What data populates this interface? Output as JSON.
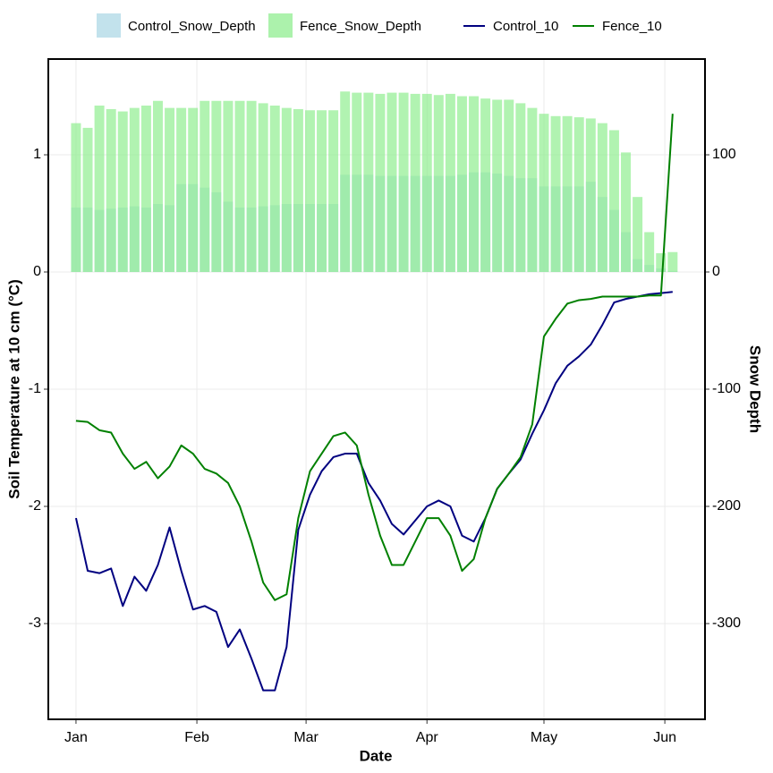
{
  "chart_data": {
    "type": "combo",
    "x_label": "Date",
    "y_label": "Soil Temperature at 10 cm (°C)",
    "y2_label": "Snow Depth",
    "x": [
      0,
      3,
      6,
      9,
      12,
      15,
      18,
      21,
      24,
      27,
      30,
      33,
      36,
      39,
      42,
      45,
      48,
      51,
      54,
      57,
      60,
      63,
      66,
      69,
      72,
      75,
      78,
      81,
      84,
      87,
      90,
      93,
      96,
      99,
      102,
      105,
      108,
      111,
      114,
      117,
      120,
      123,
      126,
      129,
      132,
      135,
      138,
      141,
      144,
      147,
      150,
      153
    ],
    "xlim": [
      -7.1,
      161.3
    ],
    "xticks": [
      {
        "value": 0,
        "label": "Jan"
      },
      {
        "value": 31,
        "label": "Feb"
      },
      {
        "value": 59,
        "label": "Mar"
      },
      {
        "value": 90,
        "label": "Apr"
      },
      {
        "value": 120,
        "label": "May"
      },
      {
        "value": 151,
        "label": "Jun"
      }
    ],
    "ylim": [
      -3.817,
      1.817
    ],
    "yticks": [
      -3,
      -2,
      -1,
      0,
      1
    ],
    "y2lim": [
      -381.7,
      181.7
    ],
    "y2ticks": [
      -300,
      -200,
      -100,
      0,
      100
    ],
    "grid": true,
    "legend_position": "top",
    "series": [
      {
        "name": "Control_Snow_Depth",
        "type": "bar",
        "axis": "y2",
        "color": "#add8e6",
        "values": [
          55,
          55,
          53,
          54,
          55,
          56,
          55,
          58,
          57,
          75,
          75,
          72,
          68,
          60,
          55,
          55,
          56,
          57,
          58,
          58,
          58,
          58,
          58,
          83,
          83,
          83,
          82,
          82,
          82,
          82,
          82,
          82,
          82,
          83,
          85,
          85,
          84,
          82,
          80,
          80,
          73,
          73,
          73,
          73,
          77,
          64,
          53,
          34,
          11,
          6,
          3,
          1
        ]
      },
      {
        "name": "Fence_Snow_Depth",
        "type": "bar",
        "axis": "y2",
        "color": "#90ee90",
        "values": [
          127,
          123,
          142,
          139,
          137,
          140,
          142,
          146,
          140,
          140,
          140,
          146,
          146,
          146,
          146,
          146,
          144,
          142,
          140,
          139,
          138,
          138,
          138,
          154,
          153,
          153,
          152,
          153,
          153,
          152,
          152,
          151,
          152,
          150,
          150,
          148,
          147,
          147,
          144,
          140,
          135,
          133,
          133,
          132,
          131,
          127,
          121,
          102,
          64,
          34,
          16,
          17
        ]
      },
      {
        "name": "Control_10",
        "type": "line",
        "color": "#000080",
        "values": [
          -2.1,
          -2.55,
          -2.57,
          -2.53,
          -2.85,
          -2.6,
          -2.72,
          -2.5,
          -2.18,
          -2.55,
          -2.88,
          -2.85,
          -2.9,
          -3.2,
          -3.05,
          -3.3,
          -3.57,
          -3.57,
          -3.2,
          -2.2,
          -1.9,
          -1.7,
          -1.58,
          -1.55,
          -1.55,
          -1.8,
          -1.95,
          -2.15,
          -2.24,
          -2.12,
          -2.0,
          -1.95,
          -2.0,
          -2.25,
          -2.3,
          -2.1,
          -1.85,
          -1.72,
          -1.6,
          -1.38,
          -1.18,
          -0.95,
          -0.8,
          -0.72,
          -0.62,
          -0.45,
          -0.26,
          -0.23,
          -0.21,
          -0.19,
          -0.18,
          -0.17
        ]
      },
      {
        "name": "Fence_10",
        "type": "line",
        "color": "#008000",
        "values": [
          -1.27,
          -1.28,
          -1.35,
          -1.37,
          -1.55,
          -1.68,
          -1.62,
          -1.76,
          -1.66,
          -1.48,
          -1.55,
          -1.68,
          -1.72,
          -1.8,
          -2.0,
          -2.3,
          -2.65,
          -2.8,
          -2.75,
          -2.1,
          -1.7,
          -1.55,
          -1.4,
          -1.37,
          -1.48,
          -1.9,
          -2.25,
          -2.5,
          -2.5,
          -2.3,
          -2.1,
          -2.1,
          -2.25,
          -2.55,
          -2.45,
          -2.1,
          -1.85,
          -1.72,
          -1.58,
          -1.3,
          -0.55,
          -0.4,
          -0.27,
          -0.24,
          -0.23,
          -0.21,
          -0.21,
          -0.21,
          -0.21,
          -0.2,
          -0.2,
          1.35
        ]
      }
    ]
  }
}
